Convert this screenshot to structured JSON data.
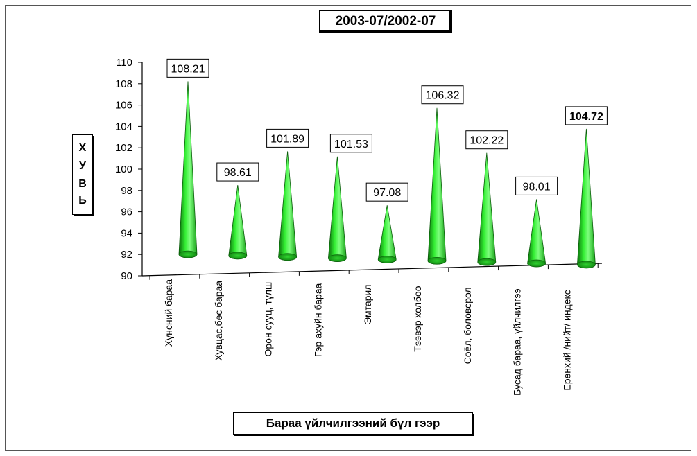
{
  "chart_data": {
    "type": "bar",
    "title": "2003-07/2002-07",
    "ylabel": "хувь",
    "xlabel": "Бараа үйлчилгээний бүл гээр",
    "ylim": [
      90,
      110
    ],
    "yticks": [
      90,
      92,
      94,
      96,
      98,
      100,
      102,
      104,
      106,
      108,
      110
    ],
    "categories": [
      "Хүнсний бараа",
      "Хувцас,бөс бараа",
      "Орон сууц, түлш",
      "Гэр ахуйн бараа",
      "Эмтарил",
      "Тээвэр холбоо",
      "Соёл, боловсрол",
      "Бусад бараа, үйлчилгээ",
      "Ерөнхий /нийт/ индекс"
    ],
    "values": [
      108.21,
      98.61,
      101.89,
      101.53,
      97.08,
      106.32,
      102.22,
      98.01,
      104.72
    ],
    "value_labels": [
      "108.21",
      "98.61",
      "101.89",
      "101.53",
      "97.08",
      "106.32",
      "102.22",
      "98.01",
      "104.72"
    ],
    "bar_shape": "cone",
    "bar_color": "#22dd22",
    "grid": false,
    "legend": "none"
  }
}
